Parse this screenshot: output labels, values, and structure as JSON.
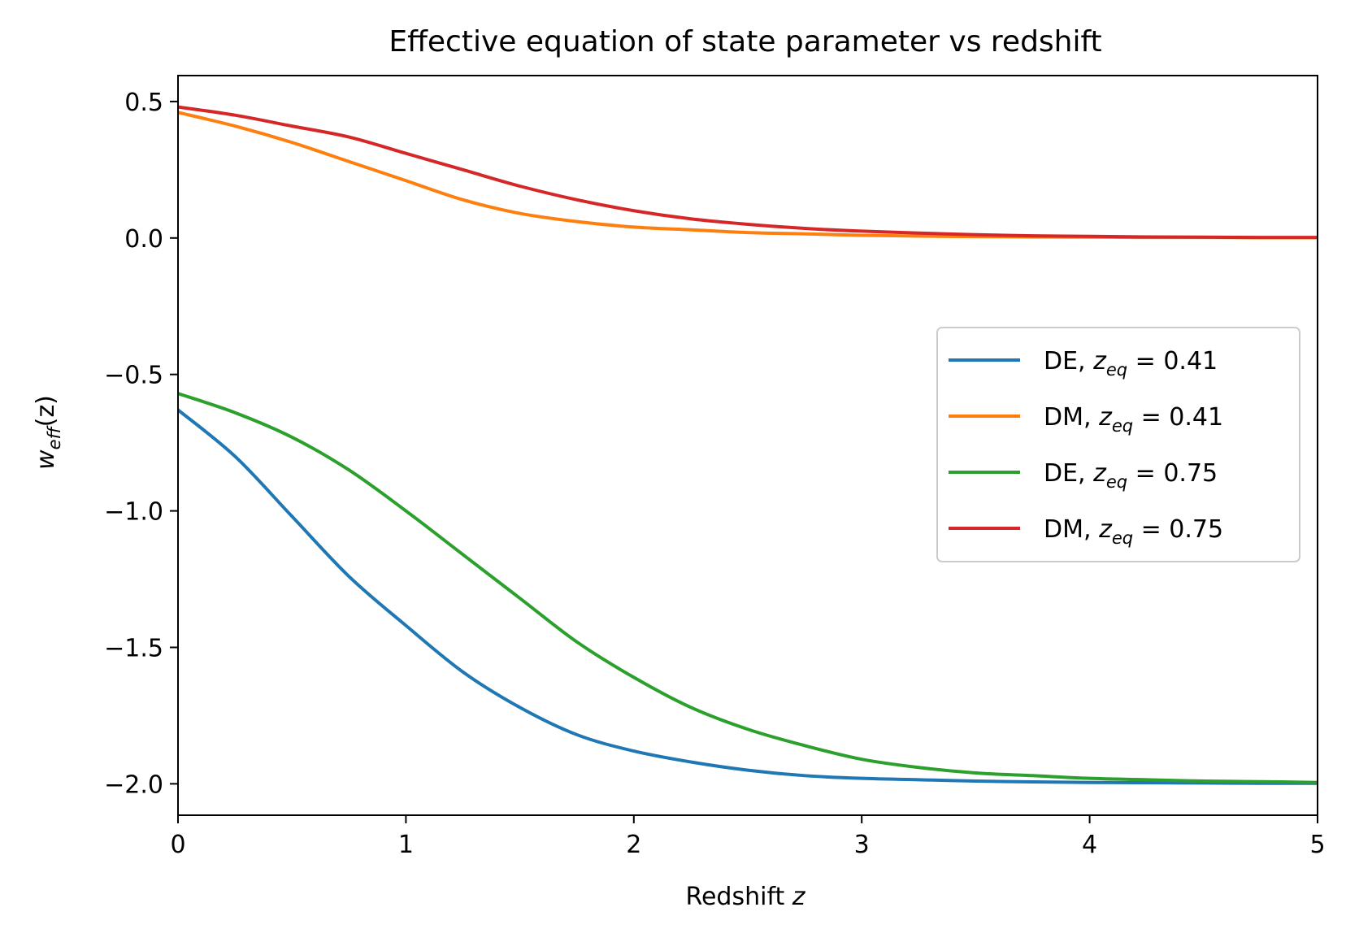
{
  "chart_data": {
    "type": "line",
    "title": "Effective equation of state parameter vs redshift",
    "xlabel": {
      "text": "Redshift ",
      "var": "z"
    },
    "ylabel": {
      "base": "w",
      "sub": "eff",
      "arg": "(z)"
    },
    "xlim": [
      0,
      5
    ],
    "ylim": [
      -2.115,
      0.595
    ],
    "xticks": [
      0,
      1,
      2,
      3,
      4,
      5
    ],
    "xtick_labels": [
      "0",
      "1",
      "2",
      "3",
      "4",
      "5"
    ],
    "yticks": [
      0.5,
      0.0,
      -0.5,
      -1.0,
      -1.5,
      -2.0
    ],
    "ytick_labels": [
      "0.5",
      "0.0",
      "−0.5",
      "−1.0",
      "−1.5",
      "−2.0"
    ],
    "grid": false,
    "legend_position": "center-right",
    "x": [
      0,
      0.25,
      0.5,
      0.75,
      1.0,
      1.25,
      1.5,
      1.75,
      2.0,
      2.25,
      2.5,
      2.75,
      3.0,
      3.25,
      3.5,
      3.75,
      4.0,
      4.25,
      4.5,
      4.75,
      5.0
    ],
    "series": [
      {
        "name": "DE, z_eq = 0.41",
        "legend_prefix": "DE, ",
        "legend_value": "0.41",
        "color": "#1f77b4",
        "values": [
          -0.63,
          -0.8,
          -1.02,
          -1.24,
          -1.42,
          -1.59,
          -1.72,
          -1.82,
          -1.88,
          -1.92,
          -1.95,
          -1.97,
          -1.98,
          -1.985,
          -1.99,
          -1.993,
          -1.995,
          -1.996,
          -1.997,
          -1.998,
          -1.998
        ]
      },
      {
        "name": "DM, z_eq = 0.41",
        "legend_prefix": "DM, ",
        "legend_value": "0.41",
        "color": "#ff7f0e",
        "values": [
          0.46,
          0.41,
          0.35,
          0.28,
          0.21,
          0.14,
          0.09,
          0.06,
          0.04,
          0.03,
          0.02,
          0.015,
          0.01,
          0.007,
          0.005,
          0.004,
          0.003,
          0.002,
          0.002,
          0.001,
          0.001
        ]
      },
      {
        "name": "DE, z_eq = 0.75",
        "legend_prefix": "DE, ",
        "legend_value": "0.75",
        "color": "#2ca02c",
        "values": [
          -0.57,
          -0.64,
          -0.73,
          -0.85,
          -1.0,
          -1.16,
          -1.32,
          -1.48,
          -1.61,
          -1.72,
          -1.8,
          -1.86,
          -1.91,
          -1.94,
          -1.96,
          -1.97,
          -1.98,
          -1.985,
          -1.99,
          -1.992,
          -1.995
        ]
      },
      {
        "name": "DM, z_eq = 0.75",
        "legend_prefix": "DM, ",
        "legend_value": "0.75",
        "color": "#d62728",
        "values": [
          0.48,
          0.45,
          0.41,
          0.37,
          0.31,
          0.25,
          0.19,
          0.14,
          0.1,
          0.07,
          0.05,
          0.035,
          0.025,
          0.018,
          0.012,
          0.008,
          0.006,
          0.004,
          0.003,
          0.002,
          0.002
        ]
      }
    ]
  }
}
